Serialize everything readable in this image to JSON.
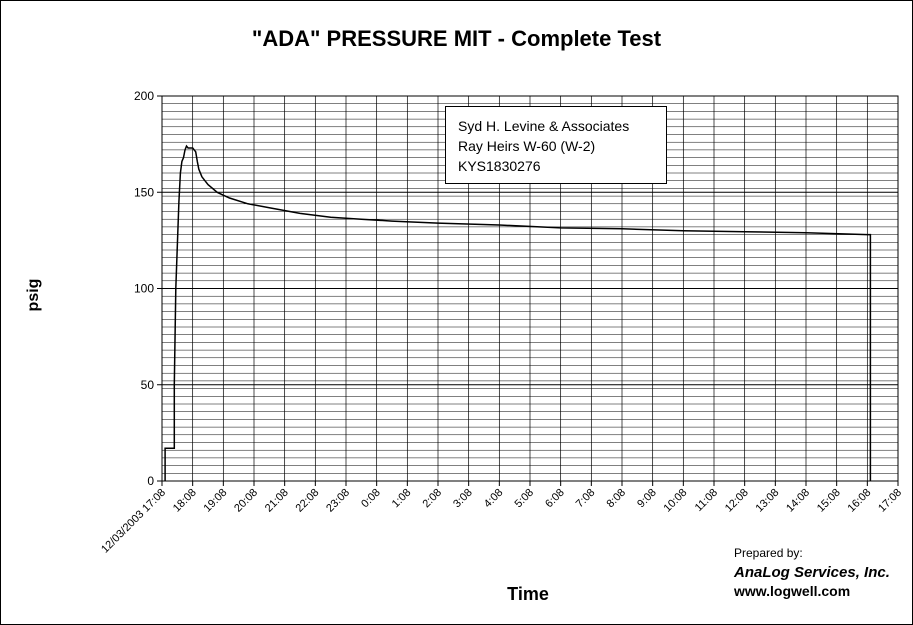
{
  "chart_data": {
    "type": "line",
    "title": "\"ADA\" PRESSURE MIT - Complete Test",
    "xlabel": "Time",
    "ylabel": "psig",
    "ylim": [
      0,
      200
    ],
    "yticks": [
      0,
      50,
      100,
      150,
      200
    ],
    "xlim": [
      "12/03/2003 17:08",
      "17:08"
    ],
    "xticks": [
      "12/03/2003 17:08",
      "18:08",
      "19:08",
      "20:08",
      "21:08",
      "22:08",
      "23:08",
      "0:08",
      "1:08",
      "2:08",
      "3:08",
      "4:08",
      "5:08",
      "6:08",
      "7:08",
      "8:08",
      "9:08",
      "10:08",
      "11:08",
      "12:08",
      "13:08",
      "14:08",
      "15:08",
      "16:08",
      "17:08"
    ],
    "grid": true,
    "annotation": [
      "Syd H. Levine & Associates",
      "Ray Heirs W-60 (W-2)",
      "KYS1830276"
    ],
    "series": [
      {
        "x_hours": [
          0.1,
          0.1,
          0.4,
          0.4,
          0.45,
          0.55,
          0.6,
          0.65,
          0.7,
          0.75,
          0.8,
          0.85,
          1.0,
          1.1,
          1.15,
          1.2,
          1.3,
          1.5,
          1.8,
          2.2,
          2.8,
          3.5,
          4.5,
          5.5,
          6.5,
          7.5,
          9,
          11,
          13,
          15,
          17,
          19,
          21,
          23,
          23.1,
          23.1
        ],
        "values": [
          0,
          17,
          17,
          50,
          100,
          145,
          160,
          166,
          168,
          172,
          174,
          173,
          173,
          171,
          166,
          162,
          158,
          154,
          150,
          147,
          144,
          142,
          139,
          137,
          136,
          135,
          134,
          133,
          131.5,
          131,
          130,
          129.5,
          129,
          128,
          128,
          0
        ]
      }
    ]
  },
  "credits": {
    "prepared_by": "Prepared by:",
    "company": "AnaLog Services, Inc.",
    "website": "www.logwell.com"
  }
}
